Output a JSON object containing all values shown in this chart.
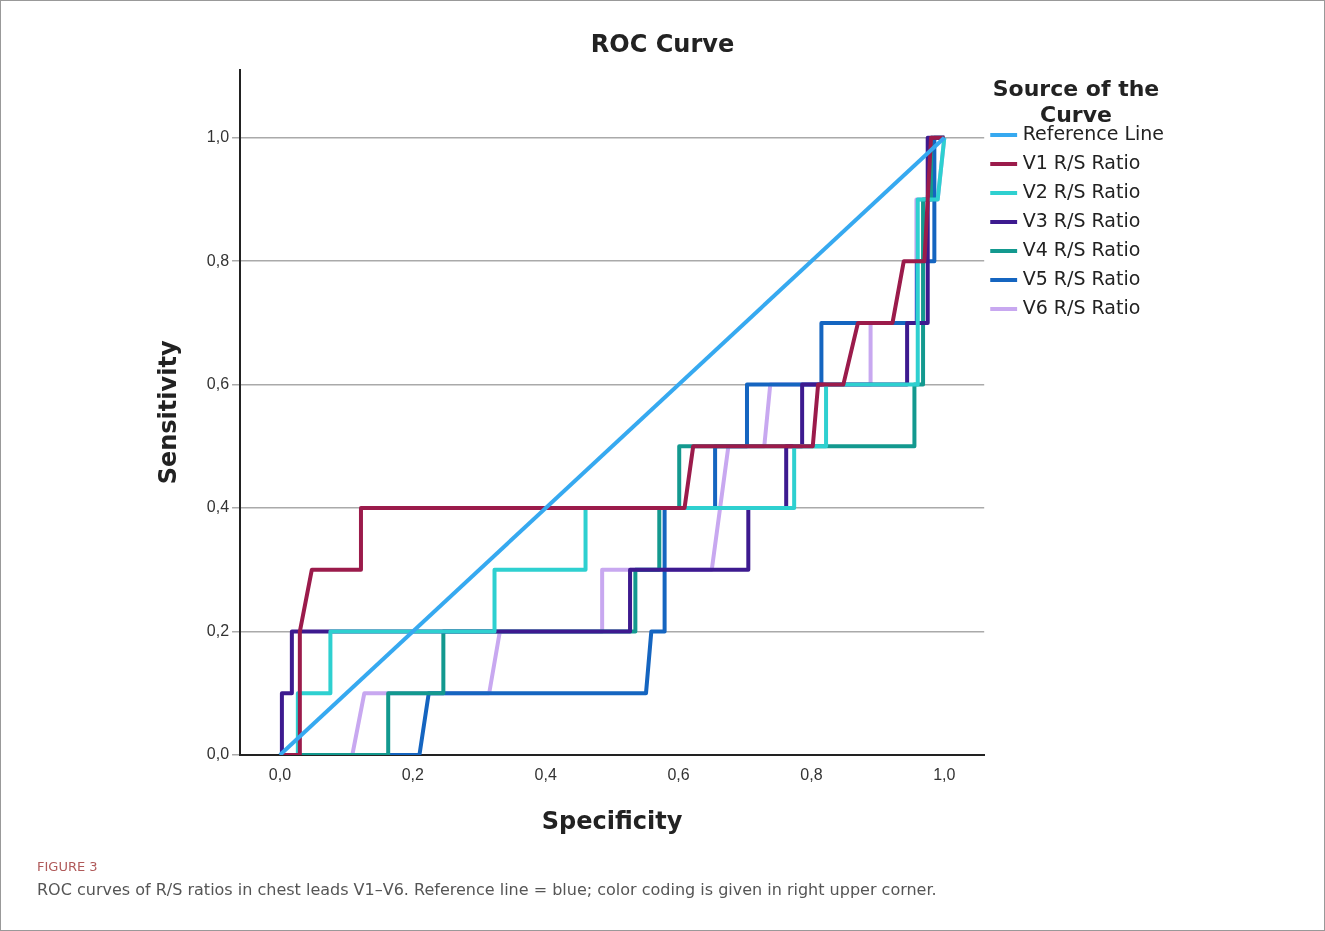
{
  "chart_data": {
    "type": "line",
    "title": "ROC Curve",
    "xlabel": "Specificity",
    "ylabel": "Sensitivity",
    "legend_title": "Source of the Curve",
    "xlim": [
      -0.06,
      1.06
    ],
    "ylim": [
      0,
      1.11
    ],
    "xticks": [
      {
        "value": 0,
        "label": "0,0"
      },
      {
        "value": 0.2,
        "label": "0,2"
      },
      {
        "value": 0.4,
        "label": "0,4"
      },
      {
        "value": 0.6,
        "label": "0,6"
      },
      {
        "value": 0.8,
        "label": "0,8"
      },
      {
        "value": 1,
        "label": "1,0"
      }
    ],
    "yticks": [
      {
        "value": 0,
        "label": "0,0"
      },
      {
        "value": 0.2,
        "label": "0,2"
      },
      {
        "value": 0.4,
        "label": "0,4"
      },
      {
        "value": 0.6,
        "label": "0,6"
      },
      {
        "value": 0.8,
        "label": "0,8"
      },
      {
        "value": 1,
        "label": "1,0"
      }
    ],
    "grid": "y",
    "legend": "right",
    "marker": "none",
    "line_style": "solid",
    "series": [
      {
        "name": "Reference Line",
        "color": "#36a9f0",
        "x": [
          0,
          1
        ],
        "values": [
          0,
          1
        ]
      },
      {
        "name": "V1 R/S Ratio",
        "color": "#9b1b4b",
        "x": [
          0,
          0.03,
          0.03,
          0.048,
          0.122,
          0.122,
          0.455,
          0.609,
          0.622,
          0.802,
          0.81,
          0.848,
          0.87,
          0.922,
          0.939,
          0.97,
          0.98,
          1
        ],
        "values": [
          0,
          0,
          0.2,
          0.3,
          0.3,
          0.4,
          0.4,
          0.4,
          0.5,
          0.5,
          0.6,
          0.6,
          0.7,
          0.7,
          0.8,
          0.8,
          1,
          1
        ]
      },
      {
        "name": "V2 R/S Ratio",
        "color": "#2ed0d0",
        "x": [
          0,
          0.027,
          0.027,
          0.076,
          0.076,
          0.323,
          0.323,
          0.46,
          0.46,
          0.774,
          0.774,
          0.822,
          0.822,
          0.96,
          0.96,
          0.99,
          1
        ],
        "values": [
          0,
          0,
          0.1,
          0.1,
          0.2,
          0.2,
          0.3,
          0.3,
          0.4,
          0.4,
          0.5,
          0.5,
          0.6,
          0.6,
          0.9,
          0.9,
          1
        ]
      },
      {
        "name": "V3 R/S Ratio",
        "color": "#3d1a8f",
        "x": [
          0.003,
          0.003,
          0.018,
          0.018,
          0.527,
          0.527,
          0.705,
          0.705,
          0.762,
          0.762,
          0.786,
          0.786,
          0.944,
          0.944,
          0.975,
          0.975,
          1
        ],
        "values": [
          0,
          0.1,
          0.1,
          0.2,
          0.2,
          0.3,
          0.3,
          0.4,
          0.4,
          0.5,
          0.5,
          0.6,
          0.6,
          0.7,
          0.7,
          1,
          1
        ]
      },
      {
        "name": "V4 R/S Ratio",
        "color": "#13998f",
        "x": [
          0,
          0.163,
          0.163,
          0.246,
          0.246,
          0.535,
          0.535,
          0.571,
          0.571,
          0.601,
          0.601,
          0.955,
          0.955,
          0.968,
          0.968,
          0.98,
          0.98,
          1
        ],
        "values": [
          0,
          0,
          0.1,
          0.1,
          0.2,
          0.2,
          0.3,
          0.3,
          0.4,
          0.4,
          0.5,
          0.5,
          0.6,
          0.6,
          0.9,
          0.9,
          1,
          1
        ]
      },
      {
        "name": "V5 R/S Ratio",
        "color": "#1565c0",
        "x": [
          0,
          0.21,
          0.224,
          0.551,
          0.559,
          0.579,
          0.579,
          0.655,
          0.655,
          0.703,
          0.703,
          0.815,
          0.815,
          0.959,
          0.959,
          0.985,
          0.985,
          1
        ],
        "values": [
          0,
          0,
          0.1,
          0.1,
          0.2,
          0.2,
          0.4,
          0.4,
          0.5,
          0.5,
          0.6,
          0.6,
          0.7,
          0.7,
          0.8,
          0.8,
          1,
          1
        ]
      },
      {
        "name": "V6 R/S Ratio",
        "color": "#c8a8f0",
        "x": [
          0,
          0.109,
          0.127,
          0.315,
          0.331,
          0.485,
          0.485,
          0.65,
          0.675,
          0.729,
          0.738,
          0.889,
          0.889,
          0.958,
          0.958,
          0.99,
          1
        ],
        "values": [
          0,
          0,
          0.1,
          0.1,
          0.2,
          0.2,
          0.3,
          0.3,
          0.5,
          0.5,
          0.6,
          0.6,
          0.7,
          0.7,
          0.9,
          0.9,
          1
        ]
      }
    ],
    "annotations": [
      "FIGURE 3",
      "ROC curves of R/S ratios in chest leads V1–V6. Reference line = blue; color coding is given in right upper corner."
    ]
  }
}
